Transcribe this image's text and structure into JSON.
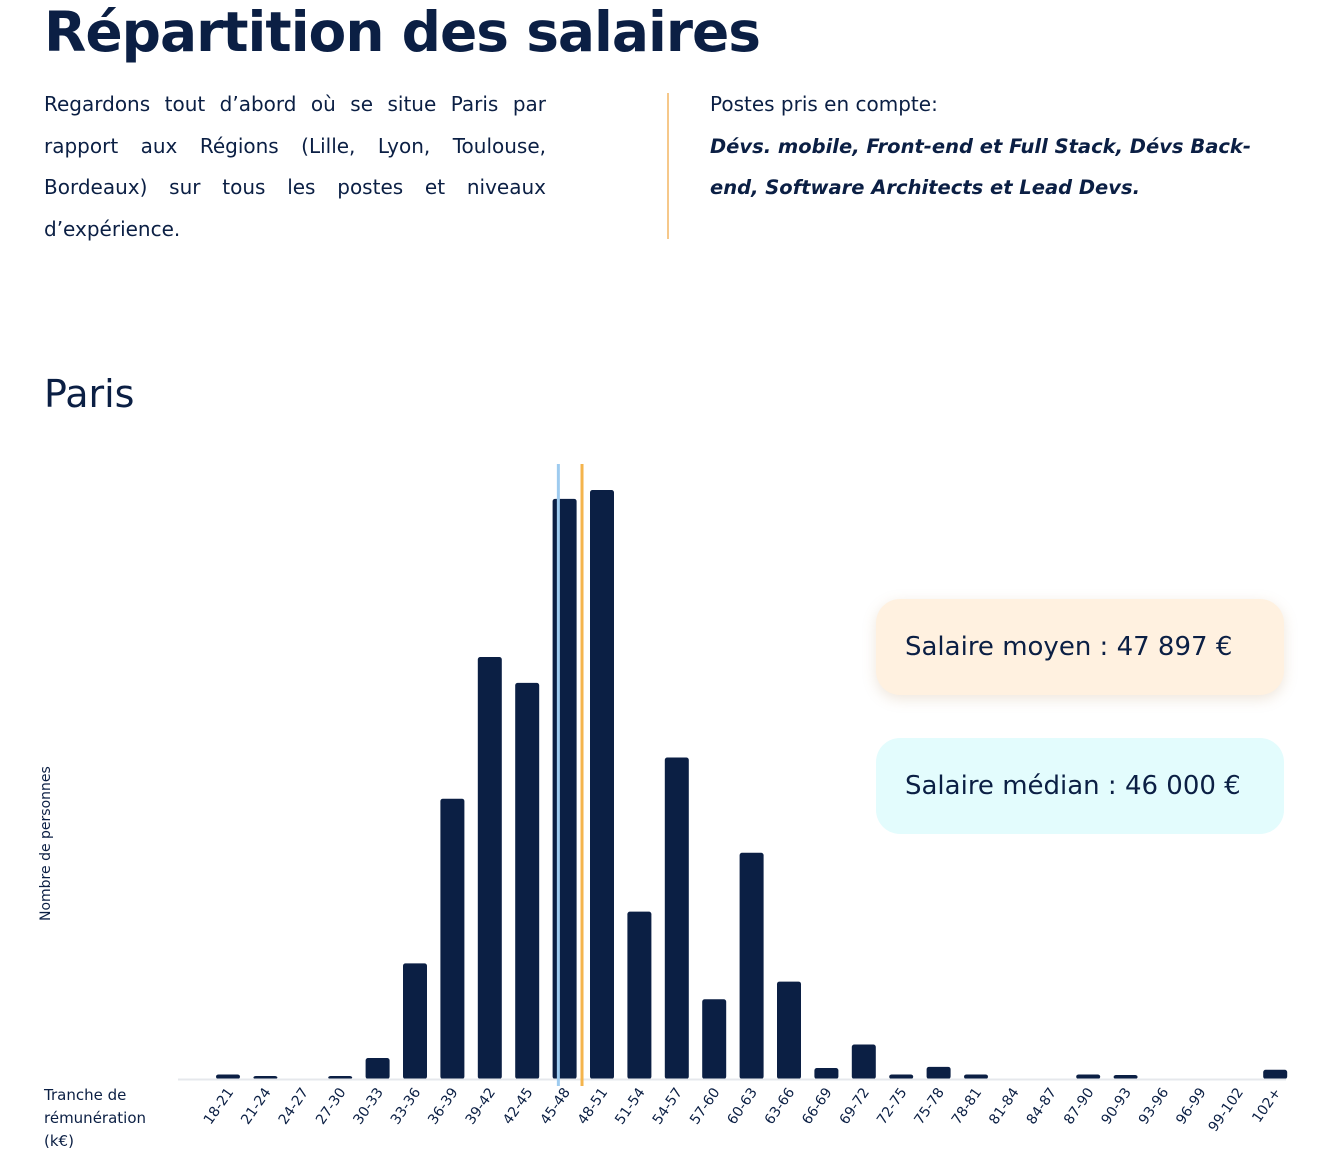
{
  "page": {
    "title": "Répartition des salaires",
    "intro": "Regardons tout d’abord où se situe Paris par rapport aux Régions (Lille, Lyon, Toulouse, Bordeaux) sur tous les postes et niveaux d’expérience.",
    "posts_label": "Postes pris en compte:",
    "posts_list": "Dévs. mobile, Front-end et Full Stack, Dévs Back-end, Software Architects et Lead Devs.",
    "city": "Paris",
    "stat_mean": "Salaire moyen : 47 897 €",
    "stat_median": "Salaire médian : 46 000 €"
  },
  "colors": {
    "bar": "#0b1f44",
    "mean_line": "#f4b44c",
    "median_line": "#9ecbef",
    "divider": "#f6c88a",
    "axis": "#e6e8ec"
  },
  "chart_data": {
    "type": "bar",
    "xlabel": "Tranche de rémunération (k€)",
    "ylabel": "Nombre de personnes",
    "categories": [
      "18-21",
      "21-24",
      "24-27",
      "27-30",
      "30-33",
      "33-36",
      "36-39",
      "39-42",
      "42-45",
      "45-48",
      "48-51",
      "51-54",
      "54-57",
      "57-60",
      "60-63",
      "63-66",
      "66-69",
      "69-72",
      "72-75",
      "75-78",
      "78-81",
      "81-84",
      "84-87",
      "87-90",
      "90-93",
      "93-96",
      "96-99",
      "99-102",
      "102+"
    ],
    "values": [
      0.6,
      0.3,
      0,
      0.3,
      3.4,
      19.5,
      47.5,
      71.6,
      67.2,
      98.5,
      100,
      28.3,
      54.5,
      13.4,
      38.3,
      16.4,
      1.7,
      5.7,
      0.6,
      1.9,
      0.6,
      0,
      0,
      0.6,
      0.5,
      0,
      0,
      0,
      1.4
    ],
    "ylim": [
      0,
      100
    ],
    "mean": 47.897,
    "median": 46,
    "grid": false,
    "legend": "right"
  }
}
